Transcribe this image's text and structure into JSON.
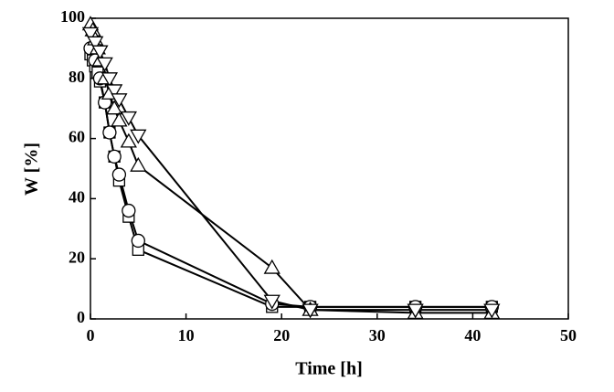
{
  "chart_data": {
    "type": "line",
    "x_label": "Time [h]",
    "y_label": "W [%]",
    "xlim": [
      0,
      50
    ],
    "xticks": [
      0,
      10,
      20,
      30,
      40,
      50
    ],
    "ylim": [
      0,
      100
    ],
    "yticks": [
      0,
      20,
      40,
      60,
      80,
      100
    ],
    "series": [
      {
        "marker": "square",
        "color": "#000000",
        "x": [
          0,
          0.25,
          0.5,
          0.75,
          1,
          1.5,
          2,
          2.5,
          3,
          4,
          5,
          19,
          23,
          34,
          42
        ],
        "values": [
          88,
          86,
          84,
          82,
          79,
          72,
          62,
          54,
          46,
          34,
          23,
          4,
          4,
          4,
          4
        ]
      },
      {
        "marker": "circle",
        "color": "#000000",
        "x": [
          0,
          0.5,
          1,
          1.5,
          2,
          2.5,
          3,
          4,
          5,
          19,
          23,
          34,
          42
        ],
        "values": [
          90,
          86,
          80,
          72,
          62,
          54,
          48,
          36,
          26,
          5,
          4,
          4,
          4
        ]
      },
      {
        "marker": "triangle-up",
        "color": "#000000",
        "x": [
          0,
          0.25,
          0.5,
          0.75,
          1,
          1.5,
          2,
          2.5,
          3,
          4,
          5,
          19,
          23,
          34,
          42
        ],
        "values": [
          98,
          96,
          93,
          90,
          86,
          80,
          75,
          70,
          66,
          59,
          51,
          17,
          3,
          2,
          2
        ]
      },
      {
        "marker": "triangle-down",
        "color": "#000000",
        "x": [
          0,
          0.5,
          1,
          1.5,
          2,
          2.5,
          3,
          4,
          5,
          19,
          23,
          34,
          42
        ],
        "values": [
          95,
          92,
          89,
          85,
          80,
          76,
          73,
          67,
          61,
          6,
          3,
          3,
          3
        ]
      }
    ]
  }
}
